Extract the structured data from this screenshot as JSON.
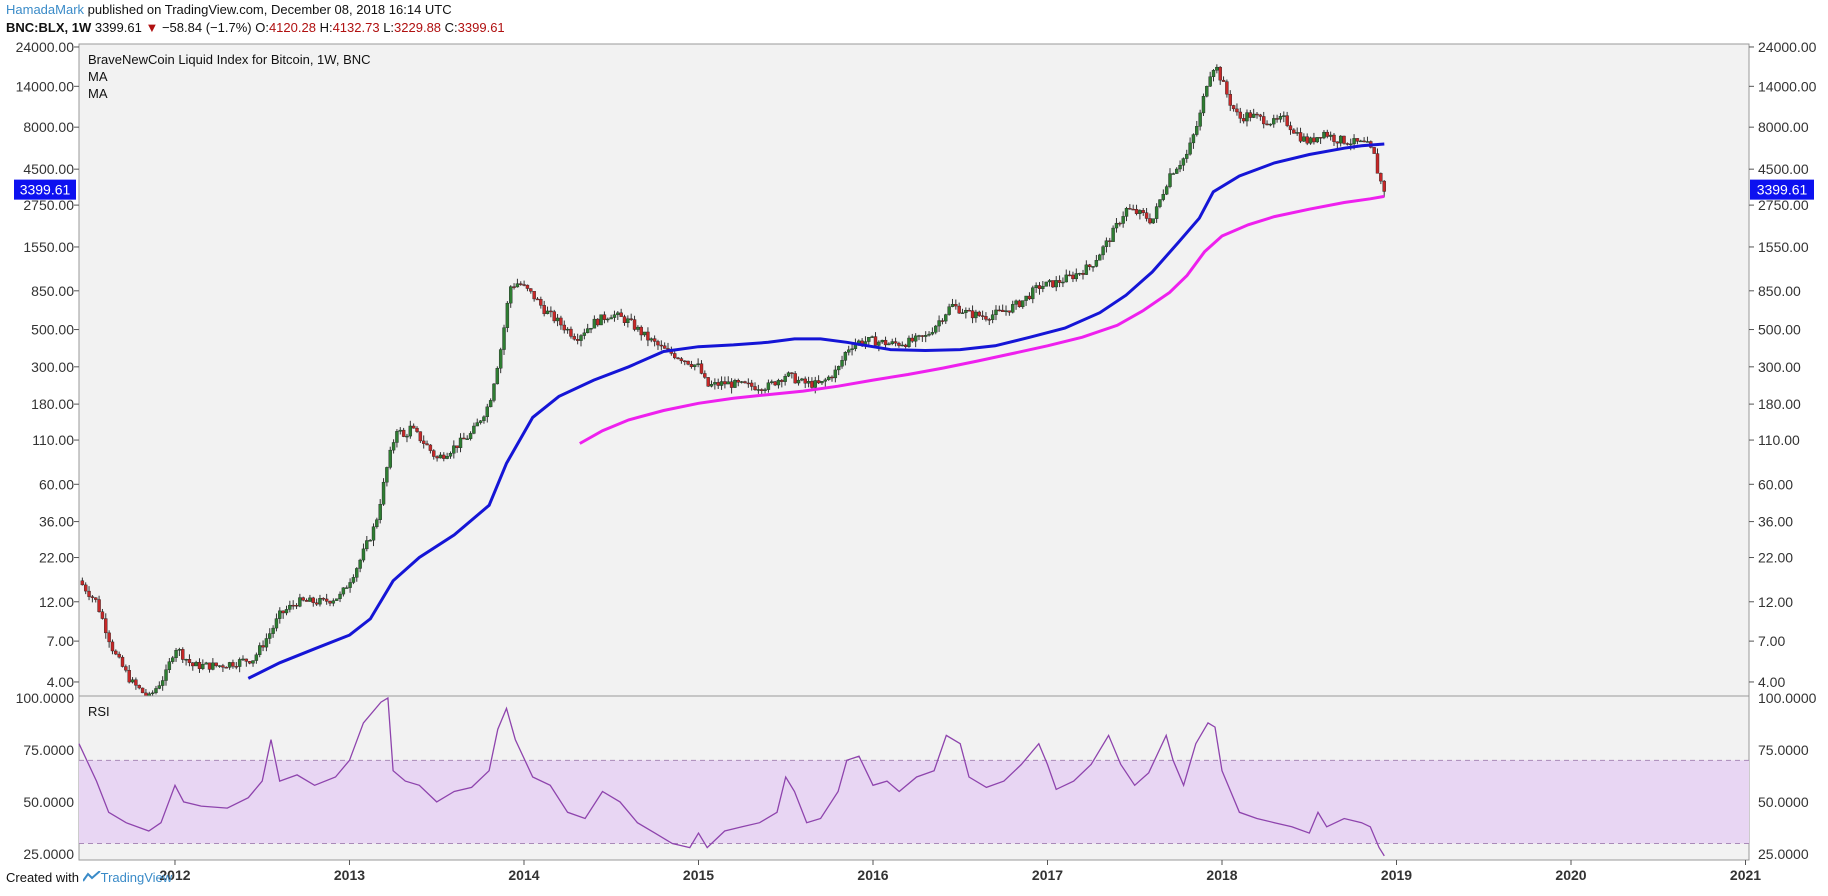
{
  "header": {
    "user": "HamadaMark",
    "published": "published on TradingView.com, December 08, 2018 16:14 UTC",
    "symbol": "BNC:BLX, 1W",
    "last": "3399.61",
    "arrow": "▼",
    "change": "−58.84 (−1.7%)",
    "o_label": "O:",
    "o_value": "4120.28",
    "h_label": "H:",
    "h_value": "4132.73",
    "l_label": "L:",
    "l_value": "3229.88",
    "c_label": "C:",
    "c_value": "3399.61"
  },
  "footer": {
    "created_with": "Created with",
    "brand": "TradingView",
    "brand_icon": "tradingview-logo-icon"
  },
  "colors": {
    "up": "#2e7d32",
    "down": "#c62828",
    "ma_fast": "#1515d6",
    "ma_slow": "#ee20ee",
    "rsi_line": "#8e44ad",
    "rsi_band": "#e8d6f3",
    "badge": "#0d11f0",
    "panel_bg": "#f2f2f2"
  },
  "chart_data": [
    {
      "type": "candlestick",
      "title": "BraveNewCoin Liquid Index for Bitcoin, 1W, BNC",
      "legend": [
        "MA",
        "MA"
      ],
      "y_scale": "log",
      "y_ticks": [
        4,
        7,
        12,
        22,
        36,
        60,
        110,
        180,
        300,
        500,
        850,
        1550,
        2750,
        4500,
        8000,
        14000,
        24000
      ],
      "y_tick_labels": [
        "4.00",
        "7.00",
        "12.00",
        "22.00",
        "36.00",
        "60.00",
        "110.00",
        "180.00",
        "300.00",
        "500.00",
        "850.00",
        "1550.00",
        "2750.00",
        "4500.00",
        "8000.00",
        "14000.00",
        "24000.00"
      ],
      "ylim": [
        3.3,
        25000
      ],
      "x_ticks": [
        "2012",
        "2013",
        "2014",
        "2015",
        "2016",
        "2017",
        "2018",
        "2019",
        "2020",
        "2021"
      ],
      "xlim": [
        2011.45,
        2021.02
      ],
      "last_price_label": "3399.61",
      "price_path": [
        [
          2011.45,
          16
        ],
        [
          2011.55,
          12
        ],
        [
          2011.65,
          6
        ],
        [
          2011.75,
          4
        ],
        [
          2011.85,
          3.2
        ],
        [
          2011.95,
          4.5
        ],
        [
          2012.0,
          6.5
        ],
        [
          2012.1,
          5
        ],
        [
          2012.25,
          5
        ],
        [
          2012.45,
          5.5
        ],
        [
          2012.55,
          8
        ],
        [
          2012.6,
          10
        ],
        [
          2012.7,
          12
        ],
        [
          2012.85,
          12
        ],
        [
          2012.95,
          13
        ],
        [
          2013.05,
          20
        ],
        [
          2013.15,
          35
        ],
        [
          2013.22,
          80
        ],
        [
          2013.28,
          140
        ],
        [
          2013.3,
          110
        ],
        [
          2013.35,
          130
        ],
        [
          2013.45,
          100
        ],
        [
          2013.5,
          85
        ],
        [
          2013.6,
          100
        ],
        [
          2013.7,
          120
        ],
        [
          2013.8,
          180
        ],
        [
          2013.87,
          400
        ],
        [
          2013.92,
          900
        ],
        [
          2013.97,
          950
        ],
        [
          2014.05,
          800
        ],
        [
          2014.12,
          650
        ],
        [
          2014.2,
          550
        ],
        [
          2014.3,
          450
        ],
        [
          2014.4,
          550
        ],
        [
          2014.5,
          620
        ],
        [
          2014.6,
          560
        ],
        [
          2014.7,
          450
        ],
        [
          2014.8,
          380
        ],
        [
          2014.9,
          340
        ],
        [
          2015.0,
          300
        ],
        [
          2015.05,
          230
        ],
        [
          2015.15,
          240
        ],
        [
          2015.3,
          230
        ],
        [
          2015.4,
          230
        ],
        [
          2015.5,
          270
        ],
        [
          2015.6,
          240
        ],
        [
          2015.7,
          235
        ],
        [
          2015.8,
          290
        ],
        [
          2015.85,
          380
        ],
        [
          2015.9,
          420
        ],
        [
          2016.0,
          430
        ],
        [
          2016.1,
          410
        ],
        [
          2016.2,
          420
        ],
        [
          2016.3,
          450
        ],
        [
          2016.4,
          600
        ],
        [
          2016.45,
          700
        ],
        [
          2016.55,
          620
        ],
        [
          2016.65,
          600
        ],
        [
          2016.75,
          640
        ],
        [
          2016.85,
          730
        ],
        [
          2016.95,
          900
        ],
        [
          2017.05,
          950
        ],
        [
          2017.15,
          1050
        ],
        [
          2017.25,
          1200
        ],
        [
          2017.35,
          1700
        ],
        [
          2017.45,
          2600
        ],
        [
          2017.55,
          2400
        ],
        [
          2017.6,
          2200
        ],
        [
          2017.7,
          4200
        ],
        [
          2017.8,
          5500
        ],
        [
          2017.87,
          9000
        ],
        [
          2017.92,
          16000
        ],
        [
          2017.96,
          19000
        ],
        [
          2018.0,
          15000
        ],
        [
          2018.05,
          11000
        ],
        [
          2018.1,
          9000
        ],
        [
          2018.15,
          9500
        ],
        [
          2018.22,
          9000
        ],
        [
          2018.3,
          8500
        ],
        [
          2018.35,
          9000
        ],
        [
          2018.45,
          7000
        ],
        [
          2018.5,
          6500
        ],
        [
          2018.58,
          7500
        ],
        [
          2018.65,
          6800
        ],
        [
          2018.75,
          6500
        ],
        [
          2018.83,
          6300
        ],
        [
          2018.87,
          5500
        ],
        [
          2018.9,
          4000
        ],
        [
          2018.93,
          3400
        ]
      ],
      "series": [
        {
          "name": "MA",
          "color": "#1515d6",
          "points": [
            [
              2012.42,
              4.2
            ],
            [
              2012.6,
              5.2
            ],
            [
              2012.8,
              6.3
            ],
            [
              2013.0,
              7.6
            ],
            [
              2013.12,
              9.5
            ],
            [
              2013.25,
              16
            ],
            [
              2013.4,
              22
            ],
            [
              2013.6,
              30
            ],
            [
              2013.8,
              45
            ],
            [
              2013.9,
              80
            ],
            [
              2014.05,
              150
            ],
            [
              2014.2,
              200
            ],
            [
              2014.4,
              250
            ],
            [
              2014.6,
              300
            ],
            [
              2014.8,
              370
            ],
            [
              2015.0,
              395
            ],
            [
              2015.2,
              405
            ],
            [
              2015.4,
              420
            ],
            [
              2015.55,
              440
            ],
            [
              2015.7,
              440
            ],
            [
              2015.85,
              420
            ],
            [
              2016.0,
              395
            ],
            [
              2016.1,
              380
            ],
            [
              2016.3,
              375
            ],
            [
              2016.5,
              380
            ],
            [
              2016.7,
              400
            ],
            [
              2016.9,
              450
            ],
            [
              2017.1,
              510
            ],
            [
              2017.3,
              630
            ],
            [
              2017.45,
              800
            ],
            [
              2017.6,
              1100
            ],
            [
              2017.75,
              1650
            ],
            [
              2017.87,
              2300
            ],
            [
              2017.95,
              3300
            ],
            [
              2018.1,
              4100
            ],
            [
              2018.3,
              4900
            ],
            [
              2018.5,
              5500
            ],
            [
              2018.7,
              6000
            ],
            [
              2018.8,
              6200
            ],
            [
              2018.93,
              6350
            ]
          ]
        },
        {
          "name": "MA",
          "color": "#ee20ee",
          "points": [
            [
              2014.32,
              105
            ],
            [
              2014.45,
              125
            ],
            [
              2014.6,
              145
            ],
            [
              2014.8,
              165
            ],
            [
              2015.0,
              182
            ],
            [
              2015.2,
              195
            ],
            [
              2015.4,
              205
            ],
            [
              2015.6,
              215
            ],
            [
              2015.8,
              230
            ],
            [
              2016.0,
              250
            ],
            [
              2016.2,
              270
            ],
            [
              2016.4,
              295
            ],
            [
              2016.6,
              325
            ],
            [
              2016.8,
              360
            ],
            [
              2017.0,
              400
            ],
            [
              2017.2,
              450
            ],
            [
              2017.4,
              530
            ],
            [
              2017.55,
              650
            ],
            [
              2017.7,
              830
            ],
            [
              2017.8,
              1050
            ],
            [
              2017.9,
              1450
            ],
            [
              2018.0,
              1800
            ],
            [
              2018.15,
              2100
            ],
            [
              2018.3,
              2350
            ],
            [
              2018.5,
              2600
            ],
            [
              2018.7,
              2850
            ],
            [
              2018.85,
              3000
            ],
            [
              2018.93,
              3100
            ]
          ]
        }
      ]
    },
    {
      "type": "line",
      "title": "RSI",
      "y_ticks": [
        25,
        50,
        75,
        100
      ],
      "y_tick_labels": [
        "25.0000",
        "50.0000",
        "75.0000",
        "100.0000"
      ],
      "ylim": [
        23,
        100
      ],
      "band": [
        30,
        70
      ],
      "series": [
        {
          "name": "RSI",
          "color": "#8e44ad",
          "points": [
            [
              2011.45,
              78
            ],
            [
              2011.55,
              60
            ],
            [
              2011.62,
              45
            ],
            [
              2011.72,
              40
            ],
            [
              2011.85,
              36
            ],
            [
              2011.92,
              40
            ],
            [
              2012.0,
              58
            ],
            [
              2012.05,
              50
            ],
            [
              2012.15,
              48
            ],
            [
              2012.3,
              47
            ],
            [
              2012.42,
              52
            ],
            [
              2012.5,
              60
            ],
            [
              2012.55,
              80
            ],
            [
              2012.6,
              60
            ],
            [
              2012.7,
              63
            ],
            [
              2012.8,
              58
            ],
            [
              2012.92,
              62
            ],
            [
              2013.0,
              70
            ],
            [
              2013.08,
              88
            ],
            [
              2013.18,
              98
            ],
            [
              2013.22,
              100
            ],
            [
              2013.25,
              65
            ],
            [
              2013.32,
              60
            ],
            [
              2013.4,
              58
            ],
            [
              2013.5,
              50
            ],
            [
              2013.6,
              55
            ],
            [
              2013.7,
              57
            ],
            [
              2013.8,
              65
            ],
            [
              2013.85,
              85
            ],
            [
              2013.9,
              95
            ],
            [
              2013.95,
              80
            ],
            [
              2014.05,
              62
            ],
            [
              2014.15,
              58
            ],
            [
              2014.25,
              45
            ],
            [
              2014.35,
              42
            ],
            [
              2014.45,
              55
            ],
            [
              2014.55,
              50
            ],
            [
              2014.65,
              40
            ],
            [
              2014.75,
              35
            ],
            [
              2014.85,
              30
            ],
            [
              2014.95,
              28
            ],
            [
              2015.0,
              35
            ],
            [
              2015.05,
              28
            ],
            [
              2015.15,
              36
            ],
            [
              2015.25,
              38
            ],
            [
              2015.35,
              40
            ],
            [
              2015.45,
              45
            ],
            [
              2015.5,
              62
            ],
            [
              2015.55,
              55
            ],
            [
              2015.62,
              40
            ],
            [
              2015.7,
              42
            ],
            [
              2015.8,
              55
            ],
            [
              2015.85,
              70
            ],
            [
              2015.92,
              72
            ],
            [
              2016.0,
              58
            ],
            [
              2016.08,
              60
            ],
            [
              2016.15,
              55
            ],
            [
              2016.25,
              62
            ],
            [
              2016.35,
              65
            ],
            [
              2016.42,
              82
            ],
            [
              2016.5,
              78
            ],
            [
              2016.55,
              62
            ],
            [
              2016.65,
              57
            ],
            [
              2016.75,
              60
            ],
            [
              2016.85,
              68
            ],
            [
              2016.95,
              78
            ],
            [
              2017.0,
              68
            ],
            [
              2017.05,
              56
            ],
            [
              2017.15,
              60
            ],
            [
              2017.25,
              68
            ],
            [
              2017.35,
              82
            ],
            [
              2017.42,
              68
            ],
            [
              2017.5,
              58
            ],
            [
              2017.58,
              64
            ],
            [
              2017.68,
              82
            ],
            [
              2017.72,
              70
            ],
            [
              2017.78,
              58
            ],
            [
              2017.85,
              78
            ],
            [
              2017.92,
              88
            ],
            [
              2017.96,
              86
            ],
            [
              2018.0,
              65
            ],
            [
              2018.05,
              55
            ],
            [
              2018.1,
              45
            ],
            [
              2018.2,
              42
            ],
            [
              2018.3,
              40
            ],
            [
              2018.4,
              38
            ],
            [
              2018.5,
              35
            ],
            [
              2018.55,
              45
            ],
            [
              2018.6,
              38
            ],
            [
              2018.7,
              42
            ],
            [
              2018.8,
              40
            ],
            [
              2018.85,
              38
            ],
            [
              2018.9,
              28
            ],
            [
              2018.93,
              24
            ]
          ]
        }
      ]
    }
  ]
}
